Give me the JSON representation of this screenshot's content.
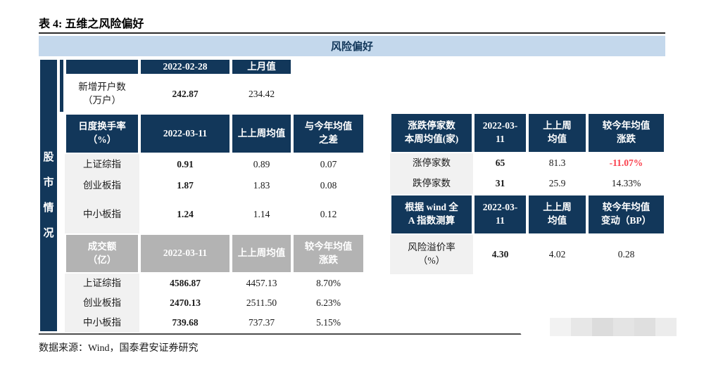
{
  "page": {
    "title": "表 4: 五维之风险偏好",
    "footer": "数据来源：Wind，国泰君安证券研究"
  },
  "banner": {
    "label": "风险偏好"
  },
  "side": {
    "label": "股市情况"
  },
  "left": {
    "account": {
      "col_date": "2022-02-28",
      "col_prev": "上月值",
      "label1": "新增开户数",
      "label2": "（万户）",
      "current": "242.87",
      "prev": "234.42"
    },
    "turnover": {
      "label1": "日度换手率",
      "label2": "（%）",
      "col_date": "2022-03-11",
      "col_avg": "上上周均值",
      "col_diff1": "与今年均值",
      "col_diff2": "之差",
      "rows": [
        {
          "label": "上证综指",
          "current": "0.91",
          "avg": "0.89",
          "diff": "0.07"
        },
        {
          "label": "创业板指",
          "current": "1.87",
          "avg": "1.83",
          "diff": "0.08"
        },
        {
          "label": "中小板指",
          "current": "1.24",
          "avg": "1.14",
          "diff": "0.12"
        }
      ]
    },
    "volume": {
      "label1": "成交额",
      "label2": "（亿）",
      "col_date": "2022-03-11",
      "col_avg": "上上周均值",
      "col_chg1": "较今年均值",
      "col_chg2": "涨跌",
      "rows": [
        {
          "label": "上证综指",
          "current": "4586.87",
          "avg": "4457.13",
          "chg": "8.70%"
        },
        {
          "label": "创业板指",
          "current": "2470.13",
          "avg": "2511.50",
          "chg": "6.23%"
        },
        {
          "label": "中小板指",
          "current": "739.68",
          "avg": "737.37",
          "chg": "5.15%"
        }
      ]
    }
  },
  "right": {
    "limits": {
      "label1": "涨跌停家数",
      "label2": "本周均值(家)",
      "col_date1": "2022-03-",
      "col_date2": "11",
      "col_avg1": "上上周",
      "col_avg2": "均值",
      "col_chg1": "较今年均值",
      "col_chg2": "涨跌",
      "rows": [
        {
          "label": "涨停家数",
          "current": "65",
          "avg": "81.3",
          "chg": "-11.07%"
        },
        {
          "label": "跌停家数",
          "current": "31",
          "avg": "25.9",
          "chg": "14.33%"
        }
      ]
    },
    "premium": {
      "label1": "根据 wind 全",
      "label2": "A 指数测算",
      "col_date1": "2022-03-",
      "col_date2": "11",
      "col_avg1": "上上周",
      "col_avg2": "均值",
      "col_chg1": "较今年均值",
      "col_chg2": "变动（BP）",
      "row": {
        "label1": "风险溢价率",
        "label2": "（%）",
        "current": "4.30",
        "avg": "4.02",
        "chg": "0.28"
      }
    }
  },
  "colors": {
    "navy": "#12375a",
    "banner_blue": "#c4d8ec",
    "header_gray": "#b3b3b3",
    "label_gray": "#f1f1f1",
    "negative_red": "#fa3e4b"
  }
}
